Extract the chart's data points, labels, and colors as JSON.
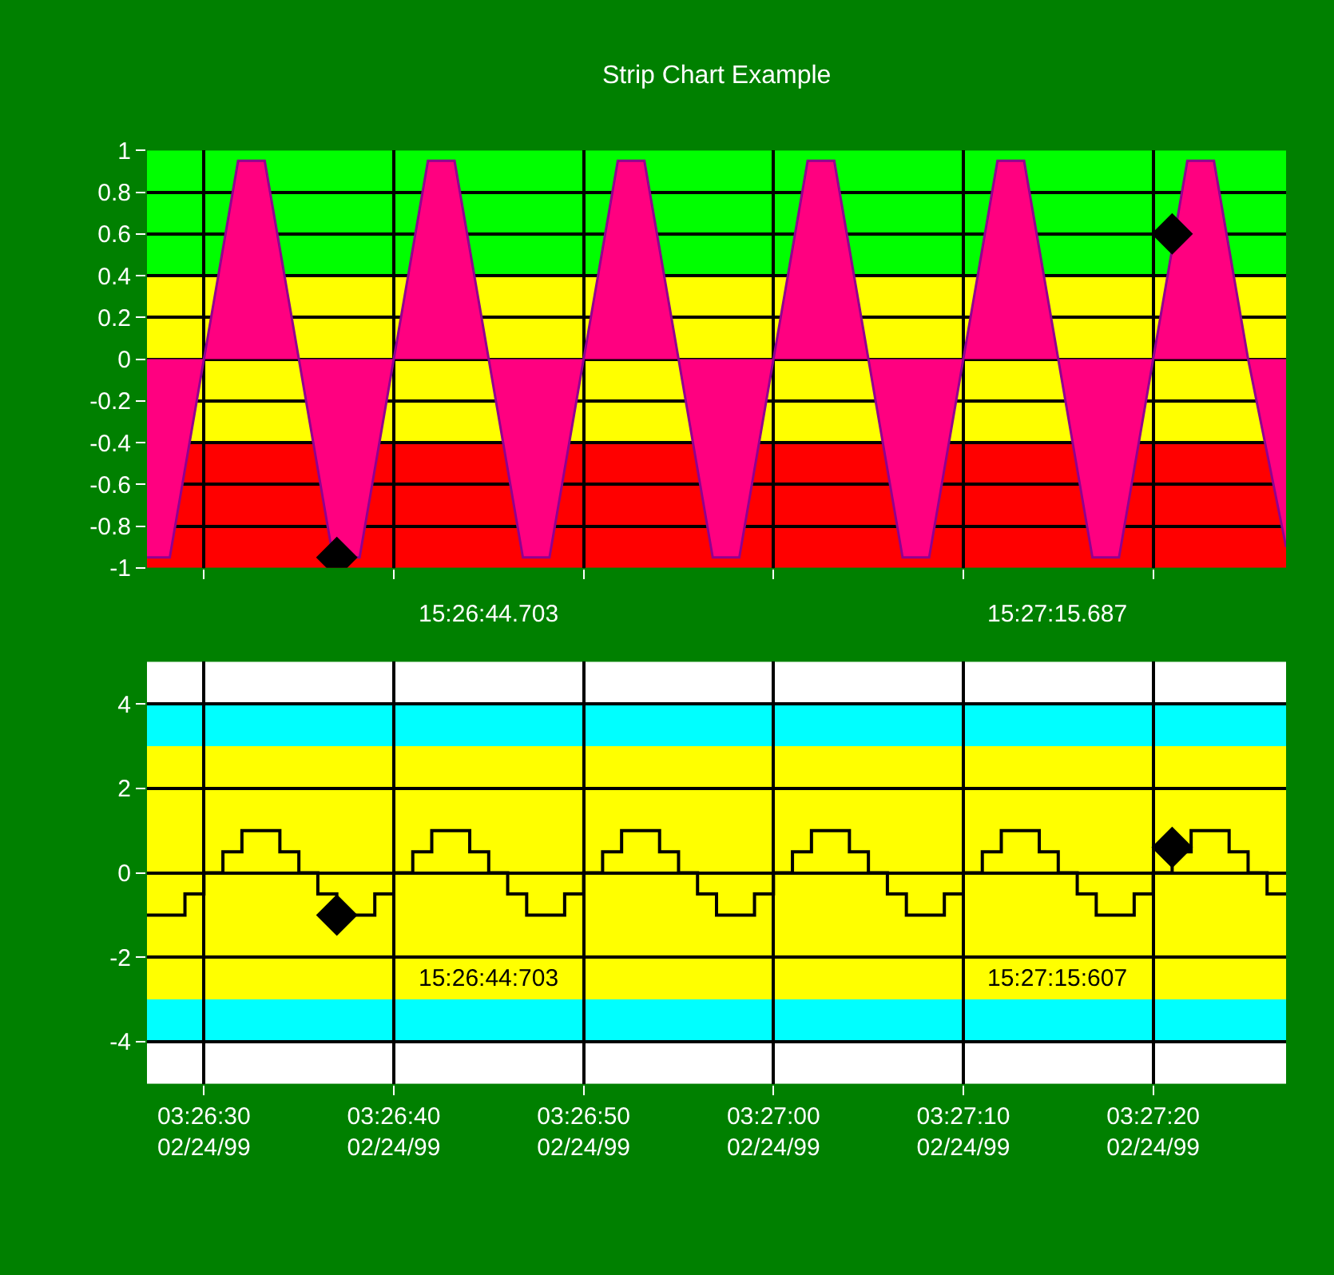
{
  "chart_data": [
    {
      "type": "area",
      "title": "Strip Chart Example",
      "xlim": [
        "1999-02-24T03:26:27",
        "1999-02-24T03:27:27"
      ],
      "xticks": [
        {
          "value": "1999-02-24T03:26:30",
          "label": null
        },
        {
          "value": "1999-02-24T03:26:40",
          "label": null
        },
        {
          "value": "1999-02-24T03:26:50",
          "label": null
        },
        {
          "value": "1999-02-24T03:27:00",
          "label": null
        },
        {
          "value": "1999-02-24T03:27:10",
          "label": null
        },
        {
          "value": "1999-02-24T03:27:20",
          "label": null
        }
      ],
      "ylim": [
        -1,
        1
      ],
      "yticks": [
        -1,
        -0.8,
        -0.6,
        -0.4,
        -0.2,
        0,
        0.2,
        0.4,
        0.6,
        0.8,
        1
      ],
      "grid": true,
      "tick_labels": "y",
      "bands": [
        {
          "axis": "y",
          "from": 0.4,
          "to": 1,
          "color": "#00ff00"
        },
        {
          "axis": "y",
          "from": -0.4,
          "to": 0.4,
          "color": "#ffff00"
        },
        {
          "axis": "y",
          "from": -1,
          "to": -0.4,
          "color": "#ff0000"
        }
      ],
      "series": [
        {
          "color": "#ff0080",
          "x": [
            "1999-02-24T03:26:27",
            "1999-02-24T03:26:28.2",
            "1999-02-24T03:26:30",
            "1999-02-24T03:26:31.8",
            "1999-02-24T03:26:33.2",
            "1999-02-24T03:26:35",
            "1999-02-24T03:26:36.8",
            "1999-02-24T03:26:38.2",
            "1999-02-24T03:26:40",
            "1999-02-24T03:26:41.8",
            "1999-02-24T03:26:43.2",
            "1999-02-24T03:26:45",
            "1999-02-24T03:26:46.8",
            "1999-02-24T03:26:48.2",
            "1999-02-24T03:26:50",
            "1999-02-24T03:26:51.8",
            "1999-02-24T03:26:53.2",
            "1999-02-24T03:26:55",
            "1999-02-24T03:26:56.8",
            "1999-02-24T03:26:58.2",
            "1999-02-24T03:27:00",
            "1999-02-24T03:27:01.8",
            "1999-02-24T03:27:03.2",
            "1999-02-24T03:27:05",
            "1999-02-24T03:27:06.8",
            "1999-02-24T03:27:08.2",
            "1999-02-24T03:27:10",
            "1999-02-24T03:27:11.8",
            "1999-02-24T03:27:13.2",
            "1999-02-24T03:27:15",
            "1999-02-24T03:27:16.8",
            "1999-02-24T03:27:18.2",
            "1999-02-24T03:27:20",
            "1999-02-24T03:27:21.8",
            "1999-02-24T03:27:23.2",
            "1999-02-24T03:27:25",
            "1999-02-24T03:27:27"
          ],
          "values": [
            -0.95,
            -0.95,
            0,
            0.95,
            0.95,
            0,
            -0.95,
            -0.95,
            0,
            0.95,
            0.95,
            0,
            -0.95,
            -0.95,
            0,
            0.95,
            0.95,
            0,
            -0.95,
            -0.95,
            0,
            0.95,
            0.95,
            0,
            -0.95,
            -0.95,
            0,
            0.95,
            0.95,
            0,
            -0.95,
            -0.95,
            0,
            0.95,
            0.95,
            0,
            -0.9
          ]
        },
        {
          "type": "scatter",
          "color": "#000000",
          "marker": "diamond",
          "x": [
            "1999-02-24T03:26:37",
            "1999-02-24T03:27:21"
          ],
          "values": [
            -0.95,
            0.6
          ]
        }
      ],
      "annotations": [
        "15:26:44.703",
        "15:27:15.687"
      ]
    },
    {
      "type": "step",
      "xlim": [
        "1999-02-24T03:26:27",
        "1999-02-24T03:27:27"
      ],
      "xticks": [
        {
          "value": "1999-02-24T03:26:30",
          "label": "03:26:30\n02/24/99"
        },
        {
          "value": "1999-02-24T03:26:40",
          "label": "03:26:40\n02/24/99"
        },
        {
          "value": "1999-02-24T03:26:50",
          "label": "03:26:50\n02/24/99"
        },
        {
          "value": "1999-02-24T03:27:00",
          "label": "03:27:00\n02/24/99"
        },
        {
          "value": "1999-02-24T03:27:10",
          "label": "03:27:10\n02/24/99"
        },
        {
          "value": "1999-02-24T03:27:20",
          "label": "03:27:20\n02/24/99"
        }
      ],
      "ylim": [
        -5,
        5
      ],
      "yticks": [
        -4,
        -2,
        0,
        2,
        4
      ],
      "grid": true,
      "bands": [
        {
          "axis": "y",
          "from": 4,
          "to": 5,
          "color": "#ffffff"
        },
        {
          "axis": "y",
          "from": 3,
          "to": 4,
          "color": "#00ffff"
        },
        {
          "axis": "y",
          "from": -3,
          "to": 3,
          "color": "#ffff00"
        },
        {
          "axis": "y",
          "from": -4,
          "to": -3,
          "color": "#00ffff"
        },
        {
          "axis": "y",
          "from": -5,
          "to": -4,
          "color": "#ffffff"
        }
      ],
      "series": [
        {
          "color": "#000000",
          "x": [
            "1999-02-24T03:26:27",
            "1999-02-24T03:26:29",
            "1999-02-24T03:26:30",
            "1999-02-24T03:26:31",
            "1999-02-24T03:26:32",
            "1999-02-24T03:26:34",
            "1999-02-24T03:26:35",
            "1999-02-24T03:26:36",
            "1999-02-24T03:26:37",
            "1999-02-24T03:26:39",
            "1999-02-24T03:26:40",
            "1999-02-24T03:26:41",
            "1999-02-24T03:26:42",
            "1999-02-24T03:26:44",
            "1999-02-24T03:26:45",
            "1999-02-24T03:26:46",
            "1999-02-24T03:26:47",
            "1999-02-24T03:26:49",
            "1999-02-24T03:26:50",
            "1999-02-24T03:26:51",
            "1999-02-24T03:26:52",
            "1999-02-24T03:26:54",
            "1999-02-24T03:26:55",
            "1999-02-24T03:26:56",
            "1999-02-24T03:26:57",
            "1999-02-24T03:26:59",
            "1999-02-24T03:27:00",
            "1999-02-24T03:27:01",
            "1999-02-24T03:27:02",
            "1999-02-24T03:27:04",
            "1999-02-24T03:27:05",
            "1999-02-24T03:27:06",
            "1999-02-24T03:27:07",
            "1999-02-24T03:27:09",
            "1999-02-24T03:27:10",
            "1999-02-24T03:27:11",
            "1999-02-24T03:27:12",
            "1999-02-24T03:27:14",
            "1999-02-24T03:27:15",
            "1999-02-24T03:27:16",
            "1999-02-24T03:27:17",
            "1999-02-24T03:27:19",
            "1999-02-24T03:27:20",
            "1999-02-24T03:27:21",
            "1999-02-24T03:27:22",
            "1999-02-24T03:27:24",
            "1999-02-24T03:27:25",
            "1999-02-24T03:27:26",
            "1999-02-24T03:27:27"
          ],
          "values": [
            -1,
            -0.5,
            0,
            0.5,
            1,
            0.5,
            0,
            -0.5,
            -1,
            -0.5,
            0,
            0.5,
            1,
            0.5,
            0,
            -0.5,
            -1,
            -0.5,
            0,
            0.5,
            1,
            0.5,
            0,
            -0.5,
            -1,
            -0.5,
            0,
            0.5,
            1,
            0.5,
            0,
            -0.5,
            -1,
            -0.5,
            0,
            0.5,
            1,
            0.5,
            0,
            -0.5,
            -1,
            -0.5,
            0,
            0.5,
            1,
            0.5,
            0,
            -0.5,
            -0.5
          ]
        },
        {
          "type": "scatter",
          "color": "#000000",
          "marker": "diamond",
          "x": [
            "1999-02-24T03:26:37",
            "1999-02-24T03:27:21"
          ],
          "values": [
            -1,
            0.6
          ]
        }
      ],
      "annotations": [
        "15:26:44:703",
        "15:27:15:607"
      ]
    }
  ]
}
